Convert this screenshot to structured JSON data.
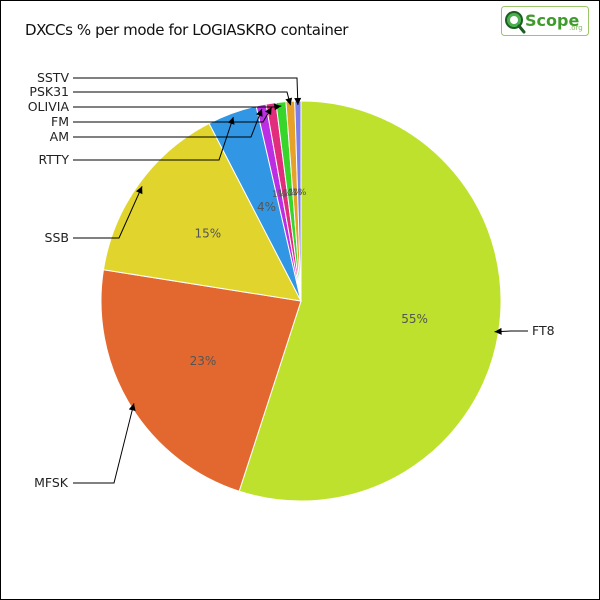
{
  "title": "DXCCs % per mode for LOGIASKRO container",
  "logo": {
    "word": "Scope",
    "suffix": ".org"
  },
  "chart_data": {
    "type": "pie",
    "slices": [
      {
        "label": "FT8",
        "value": 55.0,
        "value_label": "55%",
        "color": "#bde12d"
      },
      {
        "label": "MFSK",
        "value": 22.5,
        "value_label": "23%",
        "color": "#e2682f"
      },
      {
        "label": "SSB",
        "value": 14.9,
        "value_label": "15%",
        "color": "#e1d52d"
      },
      {
        "label": "RTTY",
        "value": 4.0,
        "value_label": "4%",
        "color": "#3196e3"
      },
      {
        "label": "AM",
        "value": 0.8,
        "value_label": "1%",
        "color": "#bb2ee3"
      },
      {
        "label": "FM",
        "value": 0.8,
        "value_label": "1%",
        "color": "#e22d7d"
      },
      {
        "label": "OLIVIA",
        "value": 0.8,
        "value_label": "1%",
        "color": "#38d52a"
      },
      {
        "label": "PSK31",
        "value": 0.7,
        "value_label": "1%",
        "color": "#e5a128"
      },
      {
        "label": "SSTV",
        "value": 0.5,
        "value_label": "1%",
        "color": "#7b7fe9"
      }
    ]
  }
}
